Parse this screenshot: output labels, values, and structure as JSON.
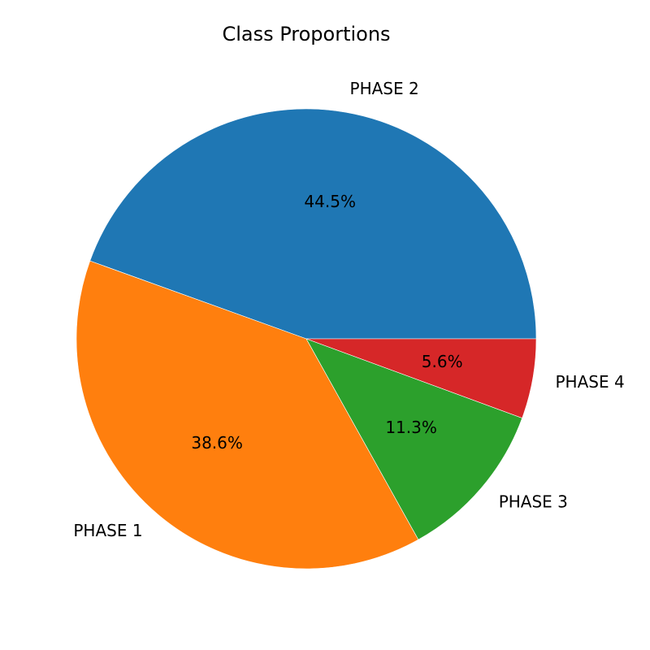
{
  "chart_data": {
    "type": "pie",
    "title": "Class Proportions",
    "start_angle_deg": 0,
    "direction": "counterclockwise",
    "slices": [
      {
        "label": "PHASE 2",
        "value": 44.5,
        "pct_text": "44.5%",
        "color": "#1f77b4"
      },
      {
        "label": "PHASE 1",
        "value": 38.6,
        "pct_text": "38.6%",
        "color": "#ff7f0e"
      },
      {
        "label": "PHASE 3",
        "value": 11.3,
        "pct_text": "11.3%",
        "color": "#2ca02c"
      },
      {
        "label": "PHASE 4",
        "value": 5.6,
        "pct_text": "5.6%",
        "color": "#d62728"
      }
    ]
  }
}
